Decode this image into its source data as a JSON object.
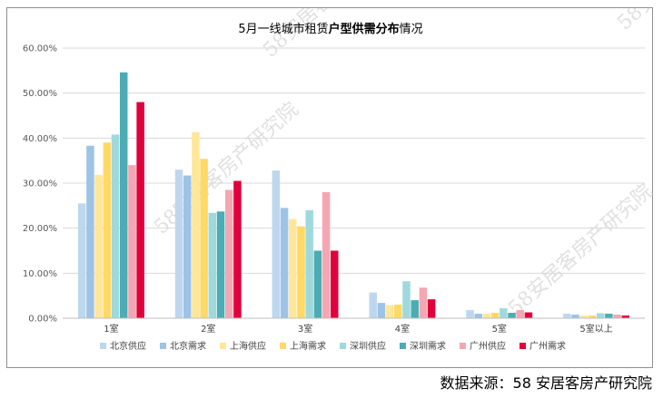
{
  "source_note": "数据来源：58 安居客房产研究院",
  "watermark_text": "58安居客房产研究院",
  "chart_data": {
    "type": "bar",
    "title_parts": [
      {
        "text": "5月一线城市租赁",
        "bold": false
      },
      {
        "text": "户型供需分布",
        "bold": true
      },
      {
        "text": "情况",
        "bold": false
      }
    ],
    "categories": [
      "1室",
      "2室",
      "3室",
      "4室",
      "5室",
      "5室以上"
    ],
    "y_ticks": [
      "0.00%",
      "10.00%",
      "20.00%",
      "30.00%",
      "40.00%",
      "50.00%",
      "60.00%"
    ],
    "ylim": [
      0,
      60
    ],
    "grid": true,
    "legend_position": "bottom",
    "series": [
      {
        "name": "北京供应",
        "color": "#bdd7ee",
        "values": [
          25.5,
          33.0,
          32.8,
          5.7,
          1.8,
          1.0
        ]
      },
      {
        "name": "北京需求",
        "color": "#9dc3e6",
        "values": [
          38.3,
          31.7,
          24.5,
          3.4,
          1.0,
          0.8
        ]
      },
      {
        "name": "上海供应",
        "color": "#ffe699",
        "values": [
          31.8,
          41.3,
          22.0,
          2.9,
          1.0,
          0.6
        ]
      },
      {
        "name": "上海需求",
        "color": "#ffd966",
        "values": [
          39.0,
          35.4,
          20.4,
          3.0,
          1.2,
          0.6
        ]
      },
      {
        "name": "深圳供应",
        "color": "#9fd9dd",
        "values": [
          40.8,
          23.4,
          24.0,
          8.2,
          2.2,
          1.1
        ]
      },
      {
        "name": "深圳需求",
        "color": "#4bacb4",
        "values": [
          54.6,
          23.7,
          15.0,
          4.0,
          1.2,
          1.0
        ]
      },
      {
        "name": "广州供应",
        "color": "#f4a7b3",
        "values": [
          34.0,
          28.5,
          28.0,
          6.8,
          1.8,
          0.8
        ]
      },
      {
        "name": "广州需求",
        "color": "#e0003c",
        "values": [
          48.0,
          30.5,
          15.0,
          4.2,
          1.3,
          0.6
        ]
      }
    ]
  }
}
